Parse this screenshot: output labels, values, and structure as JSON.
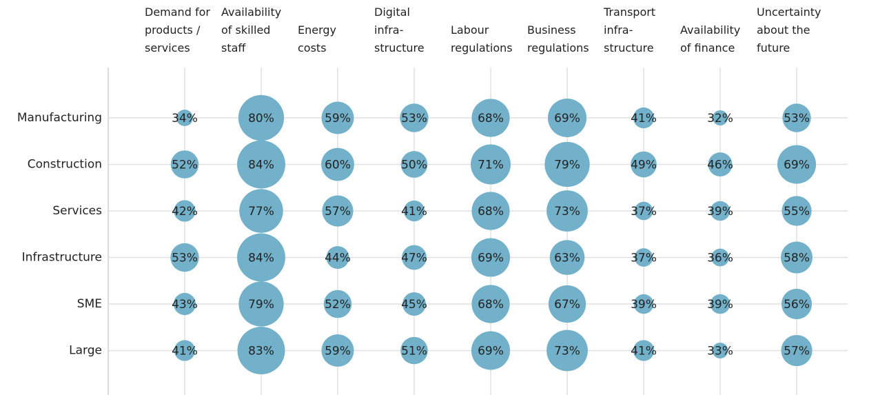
{
  "chart_data": {
    "type": "bubble-grid",
    "color": "#72b1c9",
    "categories": [
      "Demand for\nproducts /\nservices",
      "Availability\nof skilled\nstaff",
      "Energy\ncosts",
      "Digital\ninfra-\nstructure",
      "Labour\nregulations",
      "Business\nregulations",
      "Transport\ninfra-\nstructure",
      "Availability\nof finance",
      "Uncertainty\nabout the\nfuture"
    ],
    "series": [
      {
        "name": "Manufacturing",
        "values": [
          34,
          80,
          59,
          53,
          68,
          69,
          41,
          32,
          53
        ],
        "value_labels": [
          "34%",
          "80%",
          "59%",
          "53%",
          "68%",
          "69%",
          "41%",
          "32%",
          "53%"
        ]
      },
      {
        "name": "Construction",
        "values": [
          52,
          84,
          60,
          50,
          71,
          79,
          49,
          46,
          69
        ],
        "value_labels": [
          "52%",
          "84%",
          "60%",
          "50%",
          "71%",
          "79%",
          "49%",
          "46%",
          "69%"
        ]
      },
      {
        "name": "Services",
        "values": [
          42,
          77,
          57,
          41,
          68,
          73,
          37,
          39,
          55
        ],
        "value_labels": [
          "42%",
          "77%",
          "57%",
          "41%",
          "68%",
          "73%",
          "37%",
          "39%",
          "55%"
        ]
      },
      {
        "name": "Infrastructure",
        "values": [
          53,
          84,
          44,
          47,
          69,
          63,
          37,
          36,
          58
        ],
        "value_labels": [
          "53%",
          "84%",
          "44%",
          "47%",
          "69%",
          "63%",
          "37%",
          "36%",
          "58%"
        ]
      },
      {
        "name": "SME",
        "values": [
          43,
          79,
          52,
          45,
          68,
          67,
          39,
          39,
          56
        ],
        "value_labels": [
          "43%",
          "79%",
          "52%",
          "45%",
          "68%",
          "67%",
          "39%",
          "39%",
          "56%"
        ]
      },
      {
        "name": "Large",
        "values": [
          41,
          83,
          59,
          51,
          69,
          73,
          41,
          33,
          57
        ],
        "value_labels": [
          "41%",
          "83%",
          "59%",
          "51%",
          "69%",
          "73%",
          "41%",
          "33%",
          "57%"
        ]
      }
    ]
  }
}
